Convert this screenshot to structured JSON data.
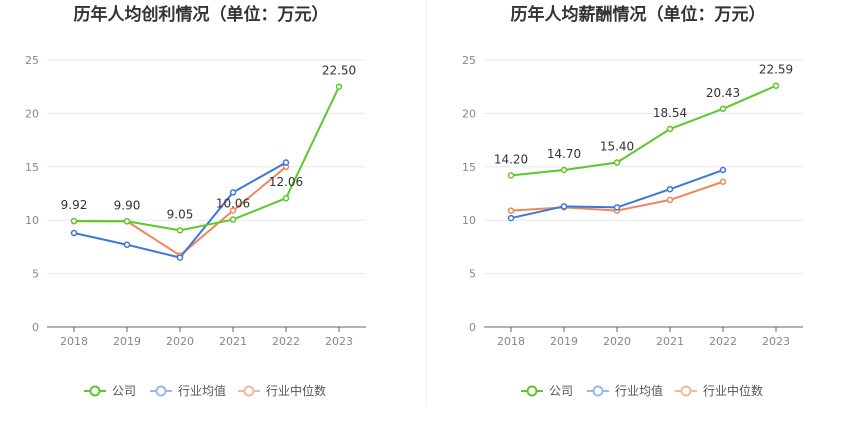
{
  "colors": {
    "company": "#5ec72b",
    "industry_avg": "#3d78d8",
    "industry_median": "#f0875a",
    "legend_avg": "#9ab7ea",
    "legend_median": "#f5b79c",
    "grid": "#e6e8f0",
    "axis": "#666666"
  },
  "legend": {
    "company": "公司",
    "industry_avg": "行业均值",
    "industry_median": "行业中位数"
  },
  "chart_data": [
    {
      "type": "line",
      "title": "历年人均创利情况（单位：万元）",
      "categories": [
        "2018",
        "2019",
        "2020",
        "2021",
        "2022",
        "2023"
      ],
      "ylim": [
        0,
        25
      ],
      "yticks": [
        0,
        5,
        10,
        15,
        20,
        25
      ],
      "series": [
        {
          "name": "公司",
          "key": "company",
          "values": [
            9.92,
            9.9,
            9.05,
            10.06,
            12.06,
            22.5
          ],
          "labels": [
            "9.92",
            "9.90",
            "9.05",
            "10.06",
            "12.06",
            "22.50"
          ]
        },
        {
          "name": "行业均值",
          "key": "industry_avg",
          "values": [
            8.8,
            7.7,
            6.5,
            12.6,
            15.4,
            null
          ]
        },
        {
          "name": "行业中位数",
          "key": "industry_median",
          "values": [
            9.9,
            9.9,
            6.7,
            10.9,
            15.0,
            null
          ]
        }
      ]
    },
    {
      "type": "line",
      "title": "历年人均薪酬情况（单位：万元）",
      "categories": [
        "2018",
        "2019",
        "2020",
        "2021",
        "2022",
        "2023"
      ],
      "ylim": [
        0,
        25
      ],
      "yticks": [
        0,
        5,
        10,
        15,
        20,
        25
      ],
      "series": [
        {
          "name": "公司",
          "key": "company",
          "values": [
            14.2,
            14.7,
            15.4,
            18.54,
            20.43,
            22.59
          ],
          "labels": [
            "14.20",
            "14.70",
            "15.40",
            "18.54",
            "20.43",
            "22.59"
          ]
        },
        {
          "name": "行业均值",
          "key": "industry_avg",
          "values": [
            10.2,
            11.3,
            11.2,
            12.9,
            14.7,
            null
          ]
        },
        {
          "name": "行业中位数",
          "key": "industry_median",
          "values": [
            10.9,
            11.2,
            10.9,
            11.9,
            13.6,
            null
          ]
        }
      ]
    }
  ]
}
